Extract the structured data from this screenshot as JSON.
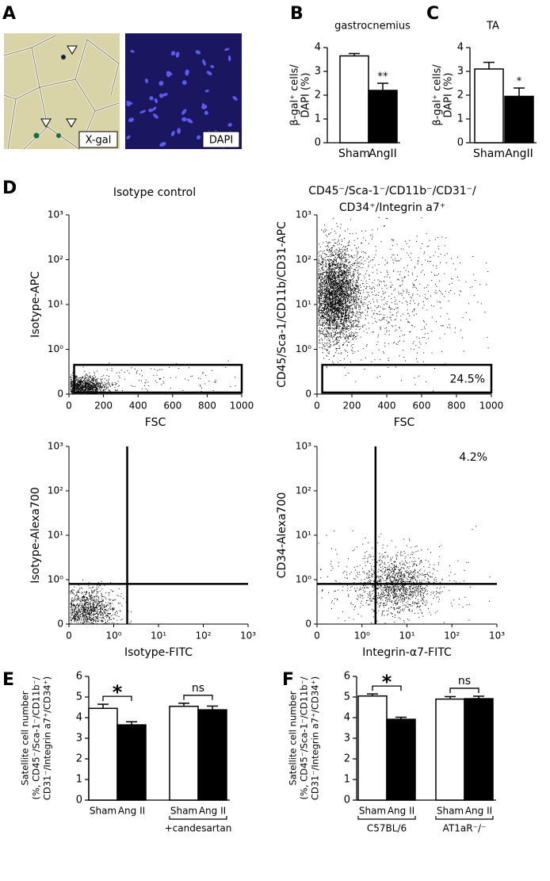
{
  "figure": {
    "panel_letters": [
      "A",
      "B",
      "C",
      "D",
      "E",
      "F"
    ],
    "image_labels": [
      "X-gal",
      "DAPI"
    ]
  },
  "chart_data": [
    {
      "type": "bar",
      "title": "gastrocnemius",
      "ylabel": [
        "β-gal⁺ cells/",
        "DAPI (%)"
      ],
      "categories": [
        "Sham",
        "AngII"
      ],
      "values": [
        3.65,
        2.2
      ],
      "errors": [
        0.1,
        0.3
      ],
      "colors": [
        "#ffffff",
        "#000000"
      ],
      "ylim": [
        0,
        4
      ],
      "yticks": [
        0,
        1,
        2,
        3,
        4
      ],
      "significance": "**"
    },
    {
      "type": "bar",
      "title": "TA",
      "ylabel": [
        "β-gal⁺ cells/",
        "DAPI (%)"
      ],
      "categories": [
        "Sham",
        "AngII"
      ],
      "values": [
        3.1,
        1.95
      ],
      "errors": [
        0.28,
        0.35
      ],
      "colors": [
        "#ffffff",
        "#000000"
      ],
      "ylim": [
        0,
        4
      ],
      "yticks": [
        0,
        1,
        2,
        3,
        4
      ],
      "significance": "*"
    },
    {
      "type": "flow",
      "title": [
        "Isotype control"
      ],
      "xlabel": "FSC",
      "ylabel": "Isotype-APC",
      "xscale": "linear",
      "xlim": [
        0,
        1000
      ],
      "xticks": [
        0,
        200,
        400,
        600,
        800,
        1000
      ],
      "yscale": "log",
      "ylim": [
        0,
        1000
      ],
      "yticks": [
        0,
        {
          "value": 1,
          "label": "10⁰"
        },
        {
          "value": 10,
          "label": "10¹"
        },
        {
          "value": 100,
          "label": "10²"
        },
        {
          "value": 1000,
          "label": "10³"
        }
      ],
      "gate": {
        "x": [
          30,
          1000
        ],
        "y": [
          0,
          0.45
        ]
      }
    },
    {
      "type": "flow",
      "title": [
        "CD45⁻/Sca-1⁻/CD11b⁻/CD31⁻/",
        "CD34⁺/Integrin a7⁺"
      ],
      "xlabel": "FSC",
      "ylabel": "CD45/Sca-1/CD11b/CD31-APC",
      "xscale": "linear",
      "xlim": [
        0,
        1000
      ],
      "xticks": [
        0,
        200,
        400,
        600,
        800,
        1000
      ],
      "yscale": "log",
      "ylim": [
        0,
        1000
      ],
      "yticks": [
        0,
        {
          "value": 1,
          "label": "10⁰"
        },
        {
          "value": 10,
          "label": "10¹"
        },
        {
          "value": 100,
          "label": "10²"
        },
        {
          "value": 1000,
          "label": "10³"
        }
      ],
      "gate": {
        "x": [
          30,
          1000
        ],
        "y": [
          0,
          0.45
        ]
      },
      "gate_label": "24.5%"
    },
    {
      "type": "flow",
      "xlabel": "Isotype-FITC",
      "ylabel": "Isotype-Alexa700",
      "xscale": "log",
      "xlim": [
        0,
        1000
      ],
      "xticks": [
        0,
        {
          "value": 1,
          "label": "10⁰"
        },
        {
          "value": 10,
          "label": "10¹"
        },
        {
          "value": 100,
          "label": "10²"
        },
        {
          "value": 1000,
          "label": "10³"
        }
      ],
      "yscale": "log",
      "ylim": [
        0,
        1000
      ],
      "yticks": [
        0,
        {
          "value": 1,
          "label": "10⁰"
        },
        {
          "value": 10,
          "label": "10¹"
        },
        {
          "value": 100,
          "label": "10²"
        },
        {
          "value": 1000,
          "label": "10³"
        }
      ],
      "quadrant": [
        2,
        0.8
      ]
    },
    {
      "type": "flow",
      "xlabel": "Integrin-α7-FITC",
      "ylabel": "CD34-Alexa700",
      "xscale": "log",
      "xlim": [
        0,
        1000
      ],
      "xticks": [
        0,
        {
          "value": 1,
          "label": "10⁰"
        },
        {
          "value": 10,
          "label": "10¹"
        },
        {
          "value": 100,
          "label": "10²"
        },
        {
          "value": 1000,
          "label": "10³"
        }
      ],
      "yscale": "log",
      "ylim": [
        0,
        1000
      ],
      "yticks": [
        0,
        {
          "value": 1,
          "label": "10⁰"
        },
        {
          "value": 10,
          "label": "10¹"
        },
        {
          "value": 100,
          "label": "10²"
        },
        {
          "value": 1000,
          "label": "10³"
        }
      ],
      "quadrant": [
        2,
        0.8
      ],
      "gate_label": "4.2%"
    },
    {
      "type": "bar",
      "ylabel": [
        "Satellite cell number",
        "(%, CD45⁻/Sca-1⁻/CD11b⁻/",
        "CD31⁻/Integrin a7⁺/CD34⁺)"
      ],
      "categories": [
        "Sham",
        "Ang II",
        "Sham",
        "Ang II"
      ],
      "values": [
        4.45,
        3.65,
        4.55,
        4.38
      ],
      "errors": [
        0.2,
        0.15,
        0.15,
        0.18
      ],
      "colors": [
        "#ffffff",
        "#000000",
        "#ffffff",
        "#000000"
      ],
      "groups": [
        null,
        "+candesartan"
      ],
      "ylim": [
        0,
        6
      ],
      "yticks": [
        0,
        1,
        2,
        3,
        4,
        5,
        6
      ],
      "significance": [
        "*",
        "ns"
      ]
    },
    {
      "type": "bar",
      "ylabel": [
        "Satellite cell number",
        "(%, CD45⁻/Sca-1⁻/CD11b⁻/",
        "CD31⁻/Integrin a7⁺/CD34⁺)"
      ],
      "categories": [
        "Sham",
        "Ang II",
        "Sham",
        "Ang II"
      ],
      "values": [
        5.05,
        3.92,
        4.9,
        4.92
      ],
      "errors": [
        0.1,
        0.1,
        0.12,
        0.12
      ],
      "colors": [
        "#ffffff",
        "#000000",
        "#ffffff",
        "#000000"
      ],
      "groups": [
        "C57BL/6",
        "AT1aR⁻/⁻"
      ],
      "ylim": [
        0,
        6
      ],
      "yticks": [
        0,
        1,
        2,
        3,
        4,
        5,
        6
      ],
      "significance": [
        "*",
        "ns"
      ]
    }
  ]
}
